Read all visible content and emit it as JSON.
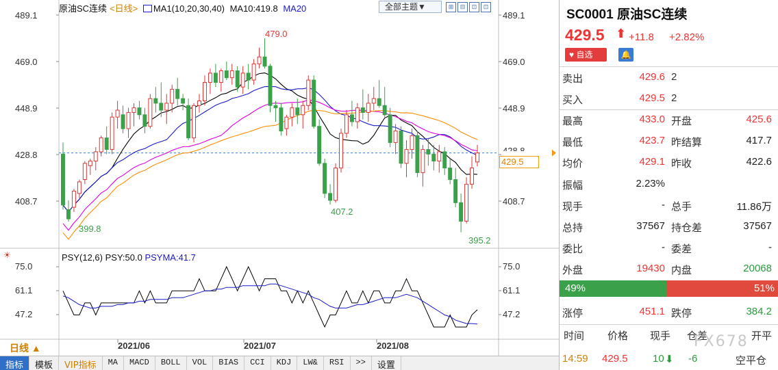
{
  "toolbar": {
    "instrument": "原油SC连续",
    "period_label": "<日线>",
    "ma_legend": "MA1(10,20,30,40)",
    "ma10_text": "MA10:419.8",
    "ma20_text": "MA20",
    "theme_button": "全部主题▼",
    "tool_buttons": [
      "⊞",
      "⊟",
      "⊡",
      "⊡"
    ]
  },
  "price_axis": {
    "left_ticks": [
      "489.1",
      "469.0",
      "448.9",
      "428.8",
      "408.7"
    ],
    "right_ticks": [
      "489.1",
      "469.0",
      "448.9",
      "408.7"
    ],
    "right_partial": "428.8",
    "current_price_tag": "429.5"
  },
  "annotations": {
    "high": "479.0",
    "low_left": "399.8",
    "low_mid": "407.2",
    "low_right": "395.2"
  },
  "psy": {
    "title": "PSY(12,6)",
    "psy_value": "PSY:50.0",
    "psyma_value": "PSYMA:41.7",
    "left_ticks": [
      "75.0",
      "61.1",
      "47.2"
    ],
    "right_ticks": [
      "75.0",
      "61.1",
      "47.2"
    ]
  },
  "dates": [
    "2021/06",
    "2021/07",
    "2021/08"
  ],
  "daily_label": "日线 ▲",
  "tabs": [
    {
      "label": "指标",
      "state": "active"
    },
    {
      "label": "模板",
      "state": ""
    },
    {
      "label": "VIP指标",
      "state": "vip"
    },
    {
      "label": "MA",
      "state": "mono"
    },
    {
      "label": "MACD",
      "state": "mono"
    },
    {
      "label": "BOLL",
      "state": "mono"
    },
    {
      "label": "VOL",
      "state": "mono"
    },
    {
      "label": "BIAS",
      "state": "mono"
    },
    {
      "label": "CCI",
      "state": "mono"
    },
    {
      "label": "KDJ",
      "state": "mono"
    },
    {
      "label": "LW&",
      "state": "mono"
    },
    {
      "label": "RSI",
      "state": "mono"
    },
    {
      "label": ">>",
      "state": "mono"
    },
    {
      "label": "设置",
      "state": ""
    }
  ],
  "panel": {
    "code_title": "SC0001 原油SC连续",
    "price": "429.5",
    "arrow": "⬆",
    "change": "+11.8",
    "change_pct": "+2.82%",
    "fav_label": "♥ 自选",
    "bell_label": "🔔",
    "quote_rows": [
      {
        "l1": "卖出",
        "v1": "429.6",
        "l2": "2",
        "v2": ""
      },
      {
        "l1": "买入",
        "v1": "429.5",
        "l2": "2",
        "v2": ""
      }
    ],
    "stat_rows": [
      {
        "l1": "最高",
        "v1": "433.0",
        "l2": "开盘",
        "v2": "425.6",
        "c1": "red",
        "c2": "red"
      },
      {
        "l1": "最低",
        "v1": "423.7",
        "l2": "昨结算",
        "v2": "417.7",
        "c1": "red",
        "c2": "dark"
      },
      {
        "l1": "均价",
        "v1": "429.1",
        "l2": "昨收",
        "v2": "422.6",
        "c1": "red",
        "c2": "dark"
      },
      {
        "l1": "振幅",
        "v1": "2.23%",
        "l2": "",
        "v2": "",
        "c1": "dark",
        "c2": "dark"
      },
      {
        "l1": "现手",
        "v1": "-",
        "l2": "总手",
        "v2": "11.86万",
        "c1": "dark",
        "c2": "dark"
      },
      {
        "l1": "总持",
        "v1": "37567",
        "l2": "持仓差",
        "v2": "37567",
        "c1": "dark",
        "c2": "dark"
      },
      {
        "l1": "委比",
        "v1": "-",
        "l2": "委差",
        "v2": "-",
        "c1": "dark",
        "c2": "dark"
      },
      {
        "l1": "外盘",
        "v1": "19430",
        "l2": "内盘",
        "v2": "20068",
        "c1": "red",
        "c2": "green"
      }
    ],
    "buy_ratio_label": "49%",
    "sell_ratio_label": "51%",
    "buy_ratio": 0.49,
    "limit_row": {
      "l1": "涨停",
      "v1": "451.1",
      "l2": "跌停",
      "v2": "384.2"
    },
    "trade_head": [
      "时间",
      "价格",
      "现手",
      "仓差",
      "开平"
    ],
    "trade_row": {
      "time": "14:59",
      "price": "429.5",
      "vol": "10",
      "vol_arrow": "⬇",
      "oi": "-6",
      "type": "空平仓"
    },
    "watermark": "FX678"
  },
  "colors": {
    "up": "#e33333",
    "down": "#3aa04a",
    "ma10": "#000000",
    "ma20": "#1a1ac8",
    "ma30": "#e000e0",
    "ma40": "#ff8c00",
    "psy": "#000000",
    "psyma": "#1a1ac8"
  },
  "candles": [
    [
      429,
      434,
      405,
      407
    ],
    [
      405,
      409,
      399.8,
      401
    ],
    [
      406,
      414,
      404,
      413
    ],
    [
      412,
      418,
      410,
      417
    ],
    [
      418,
      426,
      416,
      425
    ],
    [
      424,
      427,
      420,
      426
    ],
    [
      426,
      432,
      422,
      430
    ],
    [
      430,
      437,
      428,
      436
    ],
    [
      436,
      441,
      429,
      431
    ],
    [
      431,
      447,
      429,
      445
    ],
    [
      445,
      452,
      440,
      448
    ],
    [
      446,
      450,
      438,
      440
    ],
    [
      440,
      449,
      436,
      447
    ],
    [
      447,
      451,
      441,
      449
    ],
    [
      449,
      452,
      444,
      446
    ],
    [
      446,
      449,
      438,
      441
    ],
    [
      441,
      455,
      440,
      453
    ],
    [
      453,
      458,
      447,
      451
    ],
    [
      451,
      460,
      445,
      448
    ],
    [
      448,
      455,
      442,
      451
    ],
    [
      451,
      459,
      447,
      457
    ],
    [
      457,
      462,
      450,
      453
    ],
    [
      453,
      455,
      448,
      451
    ],
    [
      450,
      453,
      435,
      436
    ],
    [
      436,
      451,
      434,
      450
    ],
    [
      450,
      455,
      447,
      452
    ],
    [
      452,
      463,
      450,
      460
    ],
    [
      460,
      466,
      455,
      464
    ],
    [
      464,
      468,
      458,
      460
    ],
    [
      460,
      466,
      456,
      465
    ],
    [
      465,
      469,
      461,
      462
    ],
    [
      462,
      468,
      459,
      465
    ],
    [
      465,
      467,
      456,
      458
    ],
    [
      458,
      467,
      455,
      464
    ],
    [
      464,
      468,
      457,
      461
    ],
    [
      461,
      470,
      459,
      468
    ],
    [
      468,
      475,
      466,
      471
    ],
    [
      471,
      479,
      466,
      467
    ],
    [
      467,
      468,
      447,
      450
    ],
    [
      450,
      452,
      443,
      449
    ],
    [
      449,
      451,
      437,
      439
    ],
    [
      440,
      446,
      437,
      445
    ],
    [
      445,
      451,
      441,
      449
    ],
    [
      449,
      453,
      442,
      446
    ],
    [
      446,
      452,
      440,
      450
    ],
    [
      450,
      463,
      448,
      461
    ],
    [
      461,
      463,
      440,
      441
    ],
    [
      441,
      444,
      424,
      425
    ],
    [
      425,
      427,
      410,
      412
    ],
    [
      412,
      416,
      407.2,
      409
    ],
    [
      409,
      425,
      408,
      423
    ],
    [
      423,
      440,
      421,
      438
    ],
    [
      438,
      448,
      436,
      446
    ],
    [
      446,
      452,
      441,
      443
    ],
    [
      443,
      451,
      440,
      449
    ],
    [
      449,
      457,
      444,
      447
    ],
    [
      447,
      455,
      443,
      451
    ],
    [
      451,
      458,
      448,
      453
    ],
    [
      453,
      461,
      449,
      450
    ],
    [
      450,
      458,
      445,
      446
    ],
    [
      446,
      449,
      432,
      434
    ],
    [
      434,
      442,
      429,
      439
    ],
    [
      439,
      441,
      423,
      425
    ],
    [
      425,
      435,
      419,
      431
    ],
    [
      431,
      440,
      427,
      437
    ],
    [
      437,
      439,
      419,
      421
    ],
    [
      421,
      433,
      415,
      431
    ],
    [
      431,
      436,
      424,
      429
    ],
    [
      429,
      433,
      422,
      426
    ],
    [
      426,
      433,
      421,
      430
    ],
    [
      430,
      432,
      420,
      423
    ],
    [
      423,
      427,
      416,
      418
    ],
    [
      418,
      423,
      406,
      408
    ],
    [
      408,
      412,
      395.2,
      400
    ],
    [
      400,
      419,
      399,
      416
    ],
    [
      416,
      428,
      414,
      423
    ],
    [
      425.6,
      433,
      423.7,
      429.5
    ]
  ],
  "psy_series": [
    61,
    54,
    47,
    47,
    54,
    54,
    47,
    54,
    54,
    54,
    54,
    54,
    54,
    54,
    61,
    54,
    61,
    54,
    54,
    54,
    61,
    61,
    61,
    61,
    61,
    68,
    61,
    61,
    61,
    68,
    75,
    68,
    61,
    68,
    75,
    68,
    61,
    68,
    68,
    68,
    61,
    61,
    54,
    61,
    54,
    61,
    54,
    47,
    40,
    47,
    47,
    54,
    61,
    54,
    54,
    61,
    54,
    61,
    61,
    54,
    54,
    61,
    61,
    68,
    61,
    61,
    54,
    47,
    40,
    40,
    40,
    47,
    40,
    40,
    40,
    47,
    50
  ],
  "psyma_series": [
    58,
    57,
    55,
    53,
    52,
    51,
    51,
    52,
    52,
    52,
    53,
    53,
    54,
    54,
    55,
    55,
    56,
    56,
    56,
    56,
    57,
    57,
    57,
    58,
    59,
    60,
    61,
    61,
    62,
    62,
    63,
    63,
    63,
    64,
    64,
    64,
    64,
    64,
    65,
    65,
    64,
    63,
    62,
    61,
    60,
    59,
    57,
    56,
    54,
    52,
    51,
    51,
    51,
    52,
    53,
    53,
    54,
    55,
    56,
    57,
    57,
    57,
    58,
    59,
    58,
    57,
    55,
    53,
    51,
    49,
    47,
    46,
    44,
    43,
    42,
    42,
    41.7
  ]
}
